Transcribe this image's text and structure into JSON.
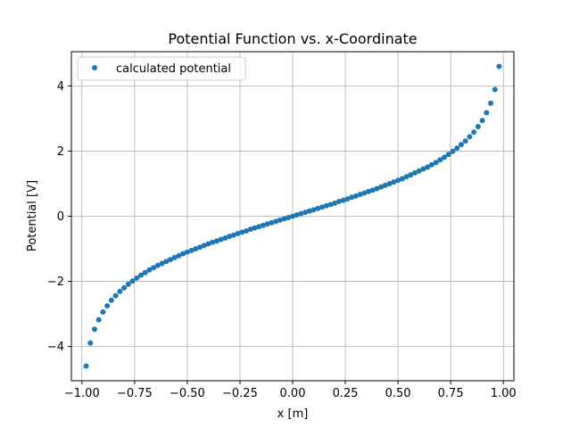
{
  "chart_data": {
    "type": "scatter",
    "title": "Potential Function vs. x-Coordinate",
    "xlabel": "x [m]",
    "ylabel": "Potential [V]",
    "xlim": [
      -1.05,
      1.05
    ],
    "ylim": [
      -5.05,
      5.05
    ],
    "xticks": [
      -1.0,
      -0.75,
      -0.5,
      -0.25,
      0.0,
      0.25,
      0.5,
      0.75,
      1.0
    ],
    "xtick_labels": [
      "−1.00",
      "−0.75",
      "−0.50",
      "−0.25",
      "0.00",
      "0.25",
      "0.50",
      "0.75",
      "1.00"
    ],
    "yticks": [
      -4,
      -2,
      0,
      2,
      4
    ],
    "ytick_labels": [
      "−4",
      "−2",
      "0",
      "2",
      "4"
    ],
    "grid": true,
    "legend_position": "upper-left",
    "series": [
      {
        "name": "calculated potential",
        "color": "#1f77b4",
        "x": [
          -0.98,
          -0.96,
          -0.94,
          -0.92,
          -0.9,
          -0.88,
          -0.86,
          -0.84,
          -0.82,
          -0.8,
          -0.78,
          -0.76,
          -0.74,
          -0.72,
          -0.7,
          -0.68,
          -0.66,
          -0.64,
          -0.62,
          -0.6,
          -0.58,
          -0.56,
          -0.54,
          -0.52,
          -0.5,
          -0.48,
          -0.46,
          -0.44,
          -0.42,
          -0.4,
          -0.38,
          -0.36,
          -0.34,
          -0.32,
          -0.3,
          -0.28,
          -0.26,
          -0.24,
          -0.22,
          -0.2,
          -0.18,
          -0.16,
          -0.14,
          -0.12,
          -0.1,
          -0.08,
          -0.06,
          -0.04,
          -0.02,
          0.0,
          0.02,
          0.04,
          0.06,
          0.08,
          0.1,
          0.12,
          0.14,
          0.16,
          0.18,
          0.2,
          0.22,
          0.24,
          0.26,
          0.28,
          0.3,
          0.32,
          0.34,
          0.36,
          0.38,
          0.4,
          0.42,
          0.44,
          0.46,
          0.48,
          0.5,
          0.52,
          0.54,
          0.56,
          0.58,
          0.6,
          0.62,
          0.64,
          0.66,
          0.68,
          0.7,
          0.72,
          0.74,
          0.76,
          0.78,
          0.8,
          0.82,
          0.84,
          0.86,
          0.88,
          0.9,
          0.92,
          0.94,
          0.96,
          0.98
        ],
        "y": [
          -4.6,
          -3.89,
          -3.47,
          -3.18,
          -2.94,
          -2.75,
          -2.58,
          -2.44,
          -2.31,
          -2.2,
          -2.09,
          -1.99,
          -1.9,
          -1.81,
          -1.73,
          -1.65,
          -1.58,
          -1.51,
          -1.45,
          -1.39,
          -1.33,
          -1.27,
          -1.21,
          -1.15,
          -1.1,
          -1.05,
          -1.0,
          -0.95,
          -0.9,
          -0.85,
          -0.8,
          -0.76,
          -0.71,
          -0.67,
          -0.62,
          -0.58,
          -0.53,
          -0.49,
          -0.45,
          -0.4,
          -0.36,
          -0.32,
          -0.28,
          -0.24,
          -0.2,
          -0.16,
          -0.12,
          -0.08,
          -0.04,
          0.0,
          0.04,
          0.08,
          0.12,
          0.16,
          0.2,
          0.24,
          0.28,
          0.32,
          0.36,
          0.4,
          0.45,
          0.49,
          0.53,
          0.58,
          0.62,
          0.67,
          0.71,
          0.76,
          0.8,
          0.85,
          0.9,
          0.95,
          1.0,
          1.05,
          1.1,
          1.15,
          1.21,
          1.27,
          1.33,
          1.39,
          1.45,
          1.51,
          1.58,
          1.65,
          1.73,
          1.81,
          1.9,
          1.99,
          2.09,
          2.2,
          2.31,
          2.44,
          2.58,
          2.75,
          2.94,
          3.18,
          3.47,
          3.89,
          4.6
        ]
      }
    ]
  }
}
